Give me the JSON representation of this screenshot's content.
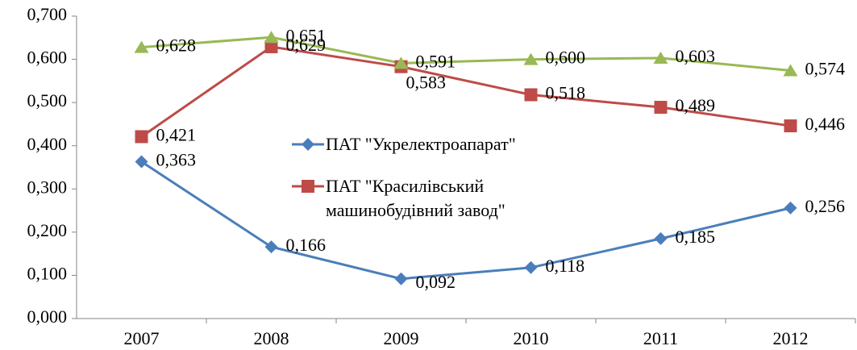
{
  "chart_data": {
    "type": "line",
    "categories": [
      "2007",
      "2008",
      "2009",
      "2010",
      "2011",
      "2012"
    ],
    "series": [
      {
        "name": "ПАТ \"Укрелектроапарат\"",
        "color": "#4a7ebb",
        "marker": "diamond",
        "values": [
          0.363,
          0.166,
          0.092,
          0.118,
          0.185,
          0.256
        ],
        "value_labels": [
          "0,363",
          "0,166",
          "0,092",
          "0,118",
          "0,185",
          "0,256"
        ]
      },
      {
        "name": "ПАТ \"Красилівський машинобудівний завод\"",
        "color": "#be4b48",
        "marker": "square",
        "values": [
          0.421,
          0.629,
          0.583,
          0.518,
          0.489,
          0.446
        ],
        "value_labels": [
          "0,421",
          "0,629",
          "0,583",
          "0,518",
          "0,489",
          "0,446"
        ]
      },
      {
        "color": "#98b954",
        "marker": "triangle",
        "values": [
          0.628,
          0.651,
          0.591,
          0.6,
          0.603,
          0.574
        ],
        "value_labels": [
          "0,628",
          "0,651",
          "0,591",
          "0,600",
          "0,603",
          "0,574"
        ]
      }
    ],
    "ylim": [
      0,
      0.7
    ],
    "yticks": [
      {
        "value": 0,
        "label": "0,000"
      },
      {
        "value": 0.1,
        "label": "0,100"
      },
      {
        "value": 0.2,
        "label": "0,200"
      },
      {
        "value": 0.3,
        "label": "0,300"
      },
      {
        "value": 0.4,
        "label": "0,400"
      },
      {
        "value": 0.5,
        "label": "0,500"
      },
      {
        "value": 0.6,
        "label": "0,600"
      },
      {
        "value": 0.7,
        "label": "0,700"
      }
    ],
    "grid": false,
    "legend": "center"
  }
}
